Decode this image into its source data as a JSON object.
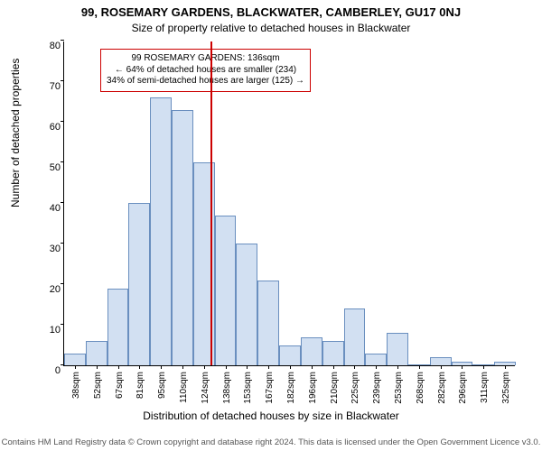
{
  "titles": {
    "address": "99, ROSEMARY GARDENS, BLACKWATER, CAMBERLEY, GU17 0NJ",
    "subtitle": "Size of property relative to detached houses in Blackwater"
  },
  "axes": {
    "ylabel": "Number of detached properties",
    "xlabel": "Distribution of detached houses by size in Blackwater",
    "ylim": [
      0,
      80
    ],
    "ytick_step": 10,
    "y_fontsize": 11,
    "x_fontsize": 10,
    "label_fontsize": 12
  },
  "chart": {
    "type": "histogram",
    "bar_fill": "#d2e0f2",
    "bar_stroke": "#6a8fbf",
    "bar_width_ratio": 1.0,
    "categories": [
      "38sqm",
      "52sqm",
      "67sqm",
      "81sqm",
      "95sqm",
      "110sqm",
      "124sqm",
      "138sqm",
      "153sqm",
      "167sqm",
      "182sqm",
      "196sqm",
      "210sqm",
      "225sqm",
      "239sqm",
      "253sqm",
      "268sqm",
      "282sqm",
      "296sqm",
      "311sqm",
      "325sqm"
    ],
    "values": [
      3,
      6,
      19,
      40,
      66,
      63,
      50,
      37,
      30,
      21,
      5,
      7,
      6,
      14,
      3,
      8,
      0,
      2,
      1,
      0,
      1
    ]
  },
  "marker": {
    "color": "#cc0000",
    "position_index": 6.8,
    "box": {
      "line1": "99 ROSEMARY GARDENS: 136sqm",
      "line2": "← 64% of detached houses are smaller (234)",
      "line3": "34% of semi-detached houses are larger (125) →"
    }
  },
  "footer": {
    "text": "Contains HM Land Registry data © Crown copyright and database right 2024. This data is licensed under the Open Government Licence v3.0.",
    "color": "#555555",
    "fontsize": 9.5
  },
  "colors": {
    "background": "#ffffff",
    "axis": "#000000",
    "annot_border": "#cc0000"
  }
}
